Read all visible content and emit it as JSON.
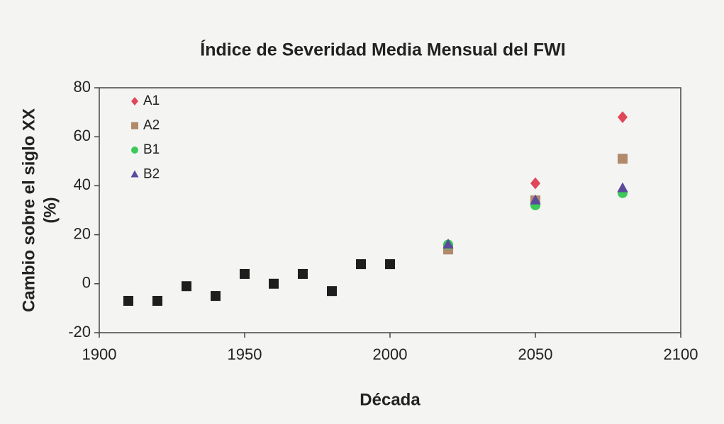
{
  "chart_data": {
    "type": "scatter",
    "title": "Índice de Severidad Media Mensual del FWI",
    "xlabel": "Década",
    "ylabel": [
      "Cambio sobre el siglo XX",
      "(%)"
    ],
    "xlim": [
      1900,
      2100
    ],
    "xticks": [
      1900,
      1950,
      2000,
      2050,
      2100
    ],
    "ylim": [
      -20,
      80
    ],
    "yticks": [
      -20,
      0,
      20,
      40,
      60,
      80
    ],
    "grid": false,
    "legend": "upper left",
    "series": [
      {
        "color": "#1e1e1e",
        "marker": "square",
        "x": [
          1910,
          1920,
          1930,
          1940,
          1950,
          1960,
          1970,
          1980,
          1990,
          2000
        ],
        "values": [
          -7,
          -7,
          -1,
          -5,
          4,
          0,
          4,
          -3,
          8,
          8
        ]
      },
      {
        "name": "A1",
        "color": "#e0475b",
        "marker": "diamond",
        "x": [
          2020,
          2050,
          2080
        ],
        "values": [
          15,
          41,
          68
        ]
      },
      {
        "name": "A2",
        "color": "#b08a6a",
        "marker": "square",
        "x": [
          2020,
          2050,
          2080
        ],
        "values": [
          14,
          34,
          51
        ]
      },
      {
        "name": "B1",
        "color": "#3cc95a",
        "marker": "circle",
        "x": [
          2020,
          2050,
          2080
        ],
        "values": [
          16,
          32,
          37
        ]
      },
      {
        "name": "B2",
        "color": "#5b4a9c",
        "marker": "triangle",
        "x": [
          2020,
          2050,
          2080
        ],
        "values": [
          16,
          34,
          39
        ]
      }
    ]
  }
}
